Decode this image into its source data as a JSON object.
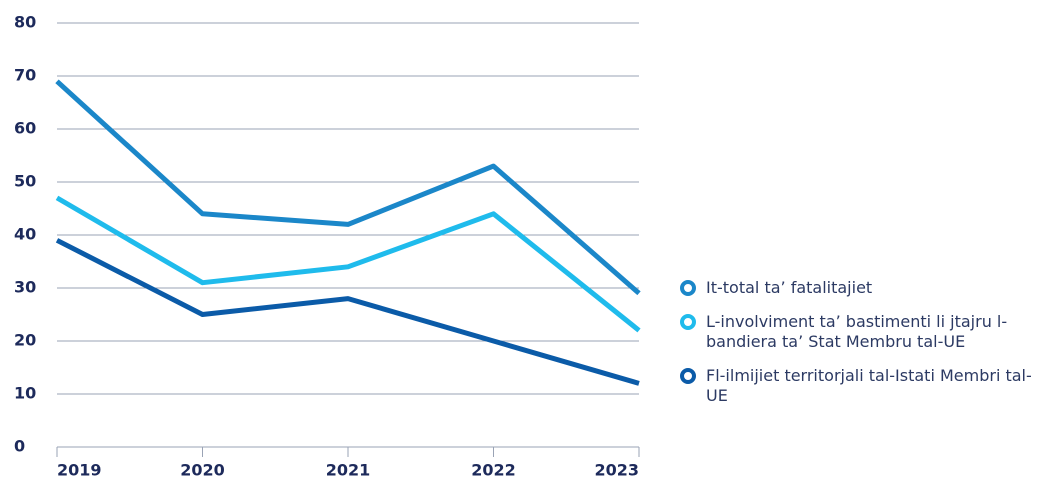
{
  "chart_data": {
    "type": "line",
    "x": [
      "2019",
      "2020",
      "2021",
      "2022",
      "2023"
    ],
    "series": [
      {
        "name": "It-total ta’ fatalitajiet",
        "color": "#1b87c9",
        "values": [
          69,
          44,
          42,
          53,
          29
        ]
      },
      {
        "name": "L-involviment ta’ bastimenti li jtajru l-bandiera ta’ Stat Membru tal-UE",
        "color": "#1fbbec",
        "values": [
          47,
          31,
          34,
          44,
          22
        ]
      },
      {
        "name": "Fl-ilmijiet territorjali tal-Istati Membri tal-UE",
        "color": "#0b5ba8",
        "values": [
          39,
          25,
          28,
          20,
          12
        ]
      }
    ],
    "ylim": [
      0,
      80
    ],
    "yticks": [
      0,
      10,
      20,
      30,
      40,
      50,
      60,
      70,
      80
    ],
    "grid": true,
    "legend": "right"
  }
}
